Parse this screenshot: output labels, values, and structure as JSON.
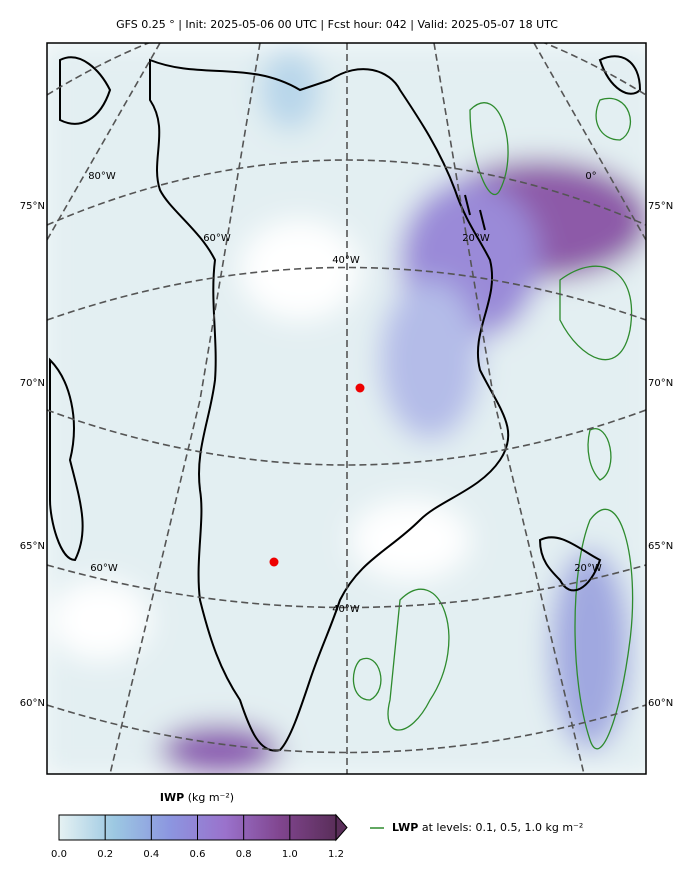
{
  "header": {
    "title": "GFS 0.25 °  |  Init: 2025-05-06 00 UTC  |  Fcst hour: 042  |  Valid: 2025-05-07 18 UTC"
  },
  "map": {
    "lat_labels_left": [
      "75°N",
      "70°N",
      "65°N",
      "60°N"
    ],
    "lat_labels_right": [
      "75°N",
      "70°N",
      "65°N",
      "60°N"
    ],
    "lon_labels": [
      "80°W",
      "60°W",
      "40°W",
      "20°W",
      "0°",
      "60°W",
      "40°W",
      "20°W"
    ]
  },
  "colorbar": {
    "label_bold": "IWP",
    "label_unit": "(kg m⁻²)",
    "lim": [
      0,
      1.2
    ],
    "ticks": [
      {
        "value": 0,
        "label": "0.0"
      },
      0.2,
      0.4,
      0.6,
      0.8,
      {
        "value": 1,
        "label": "1.0"
      },
      1.2
    ],
    "colors": [
      "#e6f2f3",
      "#9cc8e2",
      "#8c96e0",
      "#9a72cc",
      "#80458e",
      "#5a2e5a"
    ]
  },
  "legend": {
    "bold": "LWP",
    "text": "at levels: 0.1, 0.5, 1.0  kg m⁻²",
    "color": "#2e8b2e"
  }
}
